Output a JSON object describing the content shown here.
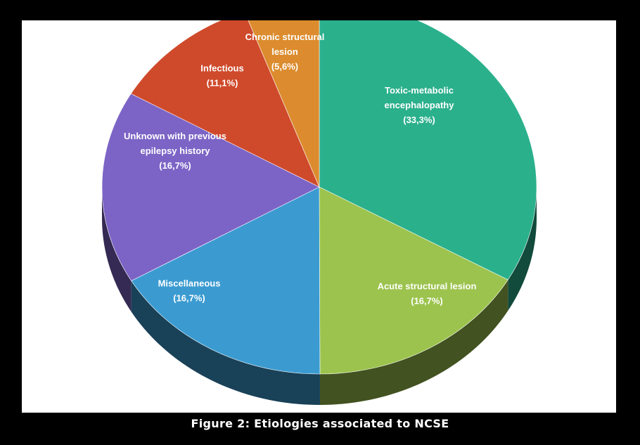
{
  "caption": "Figure 2: Etiologies associated to NCSE",
  "chart_data": {
    "type": "pie",
    "title": "",
    "slices": [
      {
        "lines": [
          "Toxic-metabolic",
          "encephalopathy",
          "(33,3%)"
        ],
        "value": 33.3,
        "color": "#2bb08c"
      },
      {
        "lines": [
          "Acute structural lesion",
          "(16,7%)"
        ],
        "value": 16.7,
        "color": "#9cc34d"
      },
      {
        "lines": [
          "Miscellaneous",
          "(16,7%)"
        ],
        "value": 16.7,
        "color": "#3b9bd1"
      },
      {
        "lines": [
          "Unknown with previous",
          "epilepsy history",
          "(16,7%)"
        ],
        "value": 16.7,
        "color": "#7c64c6"
      },
      {
        "lines": [
          "Infectious",
          "(11,1%)"
        ],
        "value": 11.1,
        "color": "#cf4a2b"
      },
      {
        "lines": [
          "Chronic structural",
          "lesion",
          "(5,6%)"
        ],
        "value": 5.6,
        "color": "#dc8c2e"
      }
    ],
    "start": "12 o'clock",
    "direction": "clockwise",
    "style": "3d-tilted"
  }
}
